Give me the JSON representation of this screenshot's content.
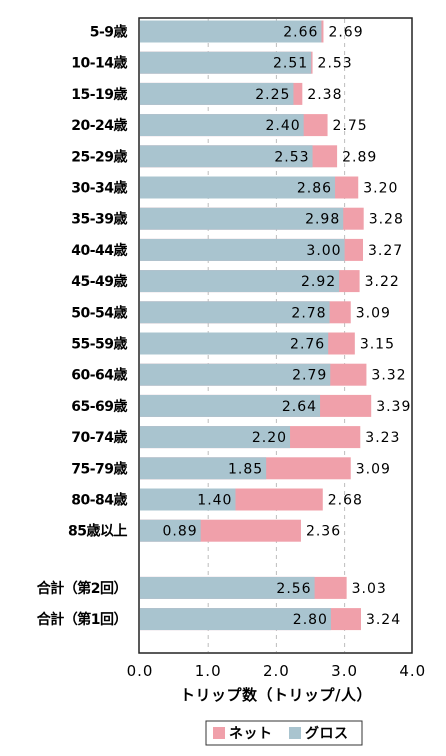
{
  "chart_data": {
    "type": "bar",
    "orientation": "horizontal",
    "stacked": "overlay",
    "categories": [
      "5-9歳",
      "10-14歳",
      "15-19歳",
      "20-24歳",
      "25-29歳",
      "30-34歳",
      "35-39歳",
      "40-44歳",
      "45-49歳",
      "50-54歳",
      "55-59歳",
      "60-64歳",
      "65-69歳",
      "70-74歳",
      "75-79歳",
      "80-84歳",
      "85歳以上",
      "合計（第2回）",
      "合計（第1回）"
    ],
    "series": [
      {
        "name": "ネット",
        "color": "#f0a0aa",
        "values": [
          2.69,
          2.53,
          2.38,
          2.75,
          2.89,
          3.2,
          3.28,
          3.27,
          3.22,
          3.09,
          3.15,
          3.32,
          3.39,
          3.23,
          3.09,
          2.68,
          2.36,
          3.03,
          3.24
        ],
        "labels": [
          "2.69",
          "2.53",
          "2.38",
          "2.75",
          "2.89",
          "3.20",
          "3.28",
          "3.27",
          "3.22",
          "3.09",
          "3.15",
          "3.32",
          "3.39",
          "3.23",
          "3.09",
          "2.68",
          "2.36",
          "3.03",
          "3.24"
        ]
      },
      {
        "name": "グロス",
        "color": "#a9c4cf",
        "values": [
          2.66,
          2.51,
          2.25,
          2.4,
          2.53,
          2.86,
          2.98,
          3.0,
          2.92,
          2.78,
          2.76,
          2.79,
          2.64,
          2.2,
          1.85,
          1.4,
          0.89,
          2.56,
          2.8
        ],
        "labels": [
          "2.66",
          "2.51",
          "2.25",
          "2.40",
          "2.53",
          "2.86",
          "2.98",
          "3.00",
          "2.92",
          "2.78",
          "2.76",
          "2.79",
          "2.64",
          "2.20",
          "1.85",
          "1.40",
          "0.89",
          "2.56",
          "2.80"
        ]
      }
    ],
    "xlabel": "トリップ数（トリップ/人）",
    "xlim": [
      0,
      4.0
    ],
    "xticks": [
      0,
      1,
      2,
      3,
      4
    ],
    "xtick_labels": [
      "0.0",
      "1.0",
      "2.0",
      "3.0",
      "4.0"
    ],
    "grid": "vertical dashed",
    "legend_position": "bottom"
  }
}
